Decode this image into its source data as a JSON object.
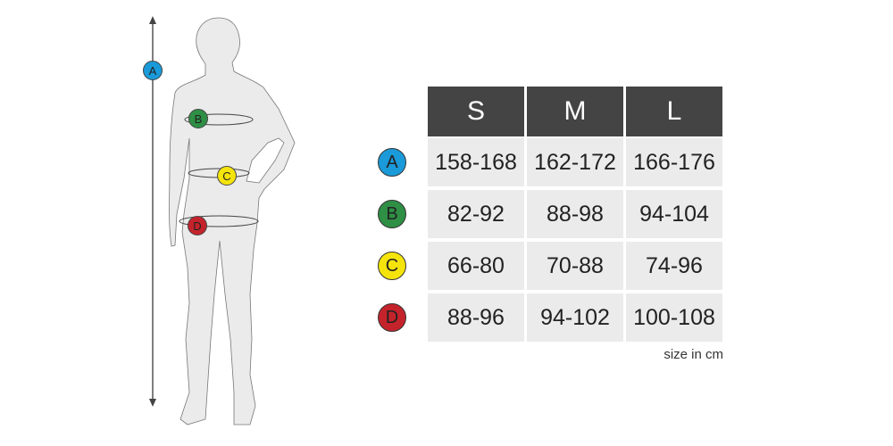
{
  "sizes": [
    "S",
    "M",
    "L"
  ],
  "rows": [
    {
      "label": "A",
      "color": "#1a9ad9",
      "values": [
        "158-168",
        "162-172",
        "166-176"
      ]
    },
    {
      "label": "B",
      "color": "#2e8f45",
      "values": [
        "82-92",
        "88-98",
        "94-104"
      ]
    },
    {
      "label": "C",
      "color": "#f5e40c",
      "values": [
        "66-80",
        "70-88",
        "74-96"
      ]
    },
    {
      "label": "D",
      "color": "#c5232b",
      "values": [
        "88-96",
        "94-102",
        "100-108"
      ]
    }
  ],
  "unit_note": "size in cm"
}
